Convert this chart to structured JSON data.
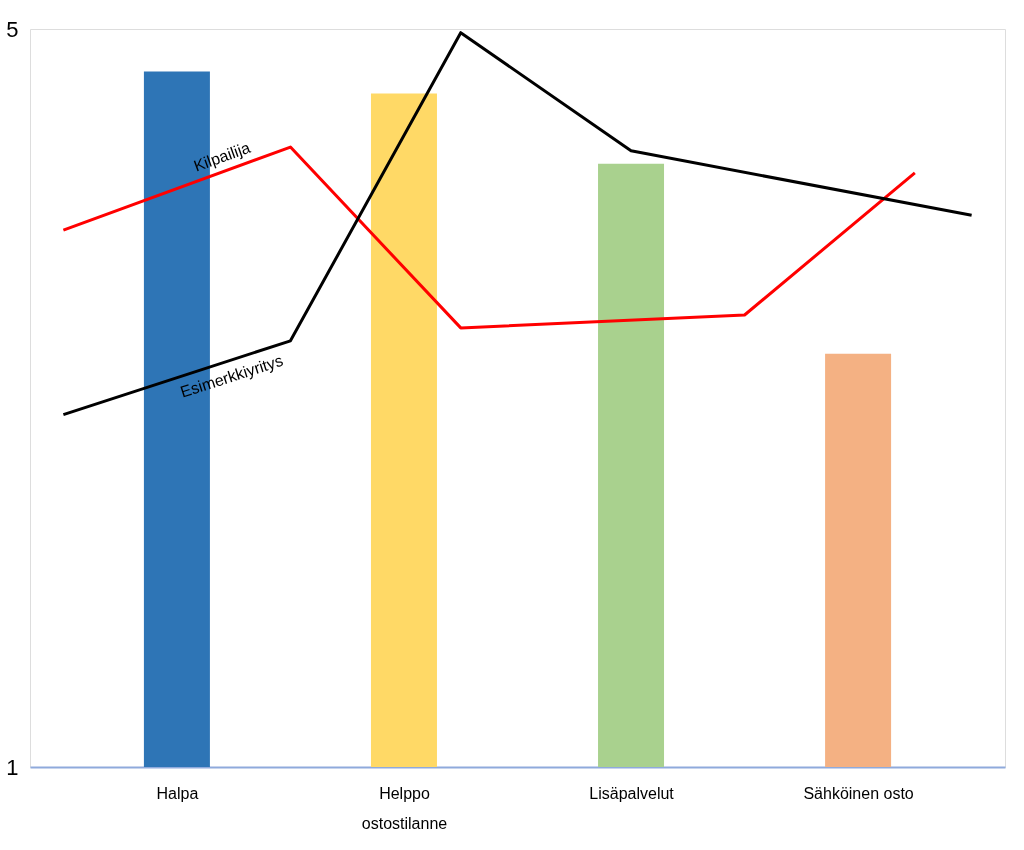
{
  "chart_data": {
    "type": "bar",
    "categories": [
      null,
      null,
      "Halpa",
      null,
      null,
      null,
      "Helppo ostostilanne",
      null,
      null,
      null,
      "Lisäpalvelut",
      null,
      null,
      null,
      "Sähköinen osto",
      null,
      null
    ],
    "values": [
      null,
      null,
      4.77,
      null,
      null,
      null,
      4.65,
      null,
      null,
      null,
      4.27,
      null,
      null,
      null,
      3.24,
      null,
      null
    ],
    "colors": [
      null,
      null,
      "#2e75b6",
      null,
      null,
      null,
      "#ffd966",
      null,
      null,
      null,
      "#a9d18e",
      null,
      null,
      null,
      "#f4b183",
      null,
      null
    ],
    "series": [
      {
        "name": "Kilpailija",
        "type": "line",
        "color": "#ff0000",
        "values": [
          3.91,
          null,
          null,
          null,
          4.36,
          null,
          null,
          3.38,
          null,
          null,
          null,
          null,
          3.45,
          null,
          null,
          4.22,
          null
        ]
      },
      {
        "name": "Esimerkkiyritys",
        "type": "line",
        "color": "#000000",
        "values": [
          2.91,
          null,
          null,
          null,
          3.31,
          null,
          null,
          4.98,
          null,
          null,
          4.34,
          null,
          null,
          null,
          null,
          null,
          3.99
        ]
      }
    ],
    "ylim": [
      1,
      5
    ],
    "yticks": [
      1,
      5
    ],
    "grid": false,
    "legend": false,
    "marker": "none"
  }
}
